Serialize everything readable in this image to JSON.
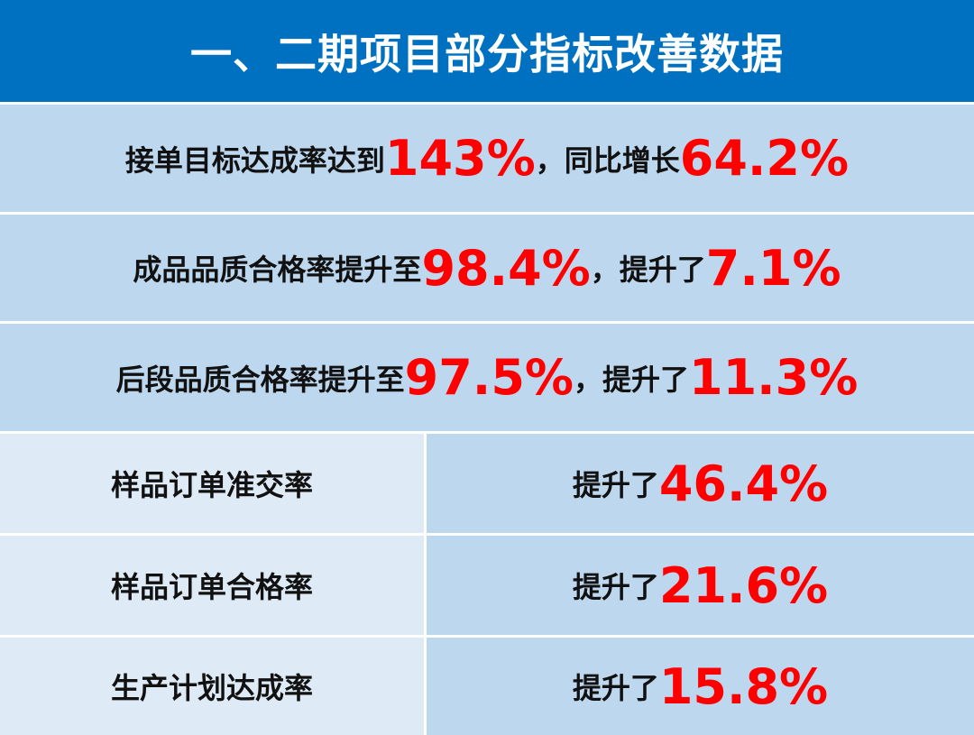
{
  "title": "一、二期项目部分指标改善数据",
  "colors": {
    "header": "#0070C0",
    "row": "#BDD7EE",
    "label_cell": "#DEEAF6",
    "highlight": "#FF0000"
  },
  "rows": [
    {
      "a": "接单目标达成率达到",
      "v1": "143%",
      "b": "，同比增长",
      "v2": "64.2%"
    },
    {
      "a": "成品品质合格率提升至",
      "v1": "98.4%",
      "b": "，提升了",
      "v2": "7.1%"
    },
    {
      "a": "后段品质合格率提升至",
      "v1": "97.5%",
      "b": "，提升了",
      "v2": "11.3%"
    }
  ],
  "table": [
    {
      "label": "样品订单准交率",
      "prefix": "提升了",
      "value": "46.4%"
    },
    {
      "label": "样品订单合格率",
      "prefix": "提升了",
      "value": "21.6%"
    },
    {
      "label": "生产计划达成率",
      "prefix": "提升了",
      "value": "15.8%"
    }
  ]
}
